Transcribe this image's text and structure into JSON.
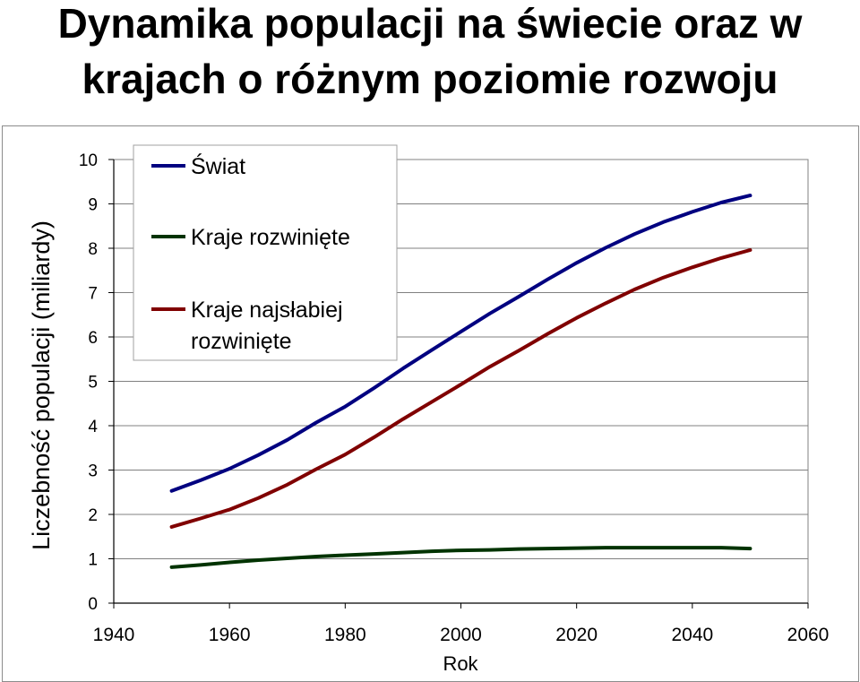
{
  "title": {
    "line1": "Dynamika populacji na świecie oraz w",
    "line2": "krajach o różnym poziomie rozwoju"
  },
  "chart_data": {
    "type": "line",
    "title": "Dynamika populacji na świecie oraz w krajach o różnym poziomie rozwoju",
    "xlabel": "Rok",
    "ylabel": "Liczebność populacji (miliardy)",
    "xlim": [
      1940,
      2060
    ],
    "ylim": [
      0,
      10
    ],
    "xticks": [
      1940,
      1960,
      1980,
      2000,
      2020,
      2040,
      2060
    ],
    "yticks": [
      0,
      1,
      2,
      3,
      4,
      5,
      6,
      7,
      8,
      9,
      10
    ],
    "grid": "horizontal",
    "legend_position": "top-left",
    "x": [
      1950,
      1955,
      1960,
      1965,
      1970,
      1975,
      1980,
      1985,
      1990,
      1995,
      2000,
      2005,
      2010,
      2015,
      2020,
      2025,
      2030,
      2035,
      2040,
      2045,
      2050
    ],
    "series": [
      {
        "name": "Świat",
        "color": "#000080",
        "legend_lines": [
          "Świat"
        ],
        "values": [
          2.53,
          2.77,
          3.03,
          3.34,
          3.68,
          4.07,
          4.43,
          4.85,
          5.29,
          5.71,
          6.12,
          6.53,
          6.91,
          7.3,
          7.67,
          8.01,
          8.32,
          8.59,
          8.82,
          9.03,
          9.19
        ]
      },
      {
        "name": "Kraje rozwinięte",
        "color": "#003300",
        "legend_lines": [
          "Kraje rozwinięte"
        ],
        "values": [
          0.81,
          0.86,
          0.92,
          0.97,
          1.01,
          1.05,
          1.08,
          1.11,
          1.14,
          1.17,
          1.19,
          1.2,
          1.22,
          1.23,
          1.24,
          1.25,
          1.25,
          1.25,
          1.25,
          1.25,
          1.23
        ]
      },
      {
        "name": "Kraje najsłabiej rozwinięte",
        "color": "#800000",
        "legend_lines": [
          "Kraje najsłabiej",
          "rozwinięte"
        ],
        "values": [
          1.72,
          1.91,
          2.11,
          2.37,
          2.67,
          3.02,
          3.35,
          3.74,
          4.15,
          4.54,
          4.93,
          5.33,
          5.69,
          6.07,
          6.43,
          6.76,
          7.07,
          7.34,
          7.57,
          7.78,
          7.96
        ]
      }
    ]
  }
}
